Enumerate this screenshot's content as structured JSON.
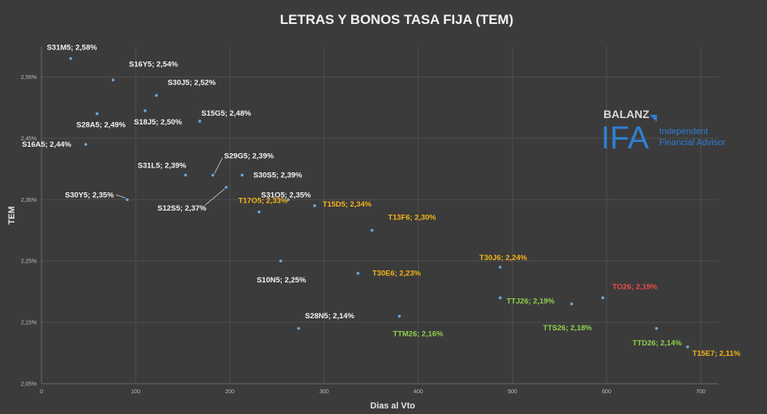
{
  "chart_data": {
    "type": "scatter",
    "title": "LETRAS Y BONOS TASA FIJA (TEM)",
    "xlabel": "Dias al Vto",
    "ylabel": "TEM",
    "xlim": [
      0,
      700
    ],
    "ylim": [
      2.05,
      2.6
    ],
    "xticks": [
      0,
      100,
      200,
      300,
      400,
      500,
      600,
      700
    ],
    "xtick_labels": [
      "0",
      "100",
      "200",
      "300",
      "400",
      "500",
      "600",
      "700"
    ],
    "yticks": [
      2.05,
      2.15,
      2.25,
      2.35,
      2.45,
      2.55
    ],
    "ytick_labels": [
      "2,05%",
      "2,15%",
      "2,25%",
      "2,35%",
      "2,45%",
      "2,55%"
    ],
    "grid": true,
    "trendline": {
      "type": "logarithmic",
      "a": 3.44,
      "b": -0.197
    },
    "colors": {
      "white": "#f2f2f2",
      "orange": "#f5b41a",
      "green": "#8ed24a",
      "red": "#f04a4a",
      "point": "#6ea6d6",
      "trend": "#5b93c3"
    },
    "points": [
      {
        "label": "S31M5; 2,58%",
        "x": 31,
        "y": 2.58,
        "color": "white"
      },
      {
        "label": "S16Y5; 2,54%",
        "x": 76,
        "y": 2.545,
        "color": "white"
      },
      {
        "label": "S30J5; 2,52%",
        "x": 122,
        "y": 2.52,
        "color": "white"
      },
      {
        "label": "S18J5; 2,50%",
        "x": 110,
        "y": 2.495,
        "color": "white"
      },
      {
        "label": "S15G5; 2,48%",
        "x": 168,
        "y": 2.478,
        "color": "white"
      },
      {
        "label": "S28A5; 2,49%",
        "x": 59,
        "y": 2.49,
        "color": "white"
      },
      {
        "label": "S16A5; 2,44%",
        "x": 47,
        "y": 2.44,
        "color": "white"
      },
      {
        "label": "S29G5; 2,39%",
        "x": 182,
        "y": 2.39,
        "color": "white"
      },
      {
        "label": "S31L5; 2,39%",
        "x": 153,
        "y": 2.39,
        "color": "white"
      },
      {
        "label": "S30S5; 2,39%",
        "x": 213,
        "y": 2.39,
        "color": "white"
      },
      {
        "label": "S30Y5; 2,35%",
        "x": 91,
        "y": 2.35,
        "color": "white"
      },
      {
        "label": "S12S5; 2,37%",
        "x": 196,
        "y": 2.37,
        "color": "white"
      },
      {
        "label": "T17O5; 2,33%",
        "x": 231,
        "y": 2.33,
        "color": "orange"
      },
      {
        "label": "T15D5; 2,34%",
        "x": 290,
        "y": 2.34,
        "color": "orange"
      },
      {
        "label": "S31O5; 2,35%",
        "x": 262,
        "y": 2.35,
        "color": "white"
      },
      {
        "label": "T13F6; 2,30%",
        "x": 351,
        "y": 2.3,
        "color": "orange"
      },
      {
        "label": "S10N5; 2,25%",
        "x": 254,
        "y": 2.25,
        "color": "white"
      },
      {
        "label": "T30E6; 2,23%",
        "x": 336,
        "y": 2.23,
        "color": "orange"
      },
      {
        "label": "T30J6; 2,24%",
        "x": 487,
        "y": 2.24,
        "color": "orange"
      },
      {
        "label": "S28N5; 2,14%",
        "x": 273,
        "y": 2.14,
        "color": "white"
      },
      {
        "label": "TTM26; 2,16%",
        "x": 380,
        "y": 2.16,
        "color": "green"
      },
      {
        "label": "TTJ26; 2,19%",
        "x": 487,
        "y": 2.19,
        "color": "green"
      },
      {
        "label": "TO26; 2,19%",
        "x": 596,
        "y": 2.19,
        "color": "red"
      },
      {
        "label": "TTS26; 2,18%",
        "x": 563,
        "y": 2.18,
        "color": "green"
      },
      {
        "label": "TTD26; 2,14%",
        "x": 653,
        "y": 2.14,
        "color": "green"
      },
      {
        "label": "T15E7; 2,11%",
        "x": 686,
        "y": 2.11,
        "color": "orange"
      }
    ]
  },
  "logo": {
    "brand": "BALANZ",
    "mark": "IFA",
    "line1": "Independent",
    "line2": "Financial Advisor"
  }
}
